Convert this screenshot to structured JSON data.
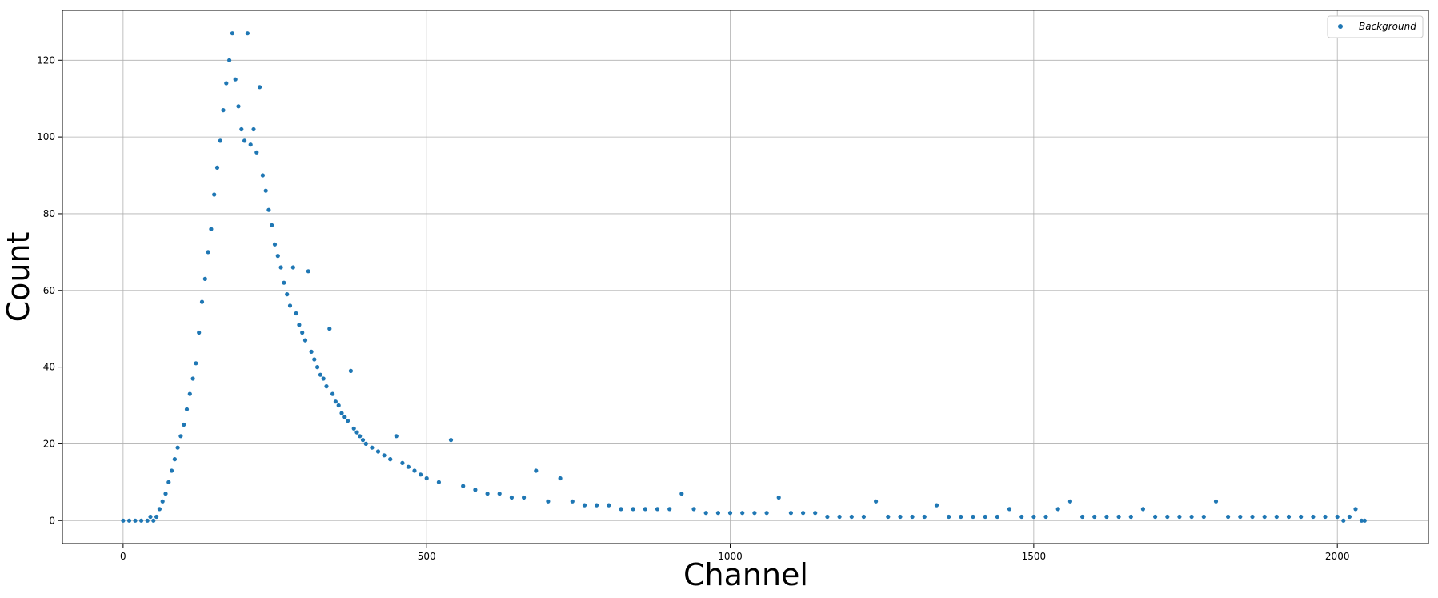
{
  "chart_data": {
    "type": "scatter",
    "title": "",
    "xlabel": "Channel",
    "ylabel": "Count",
    "xlim": [
      -100,
      2150
    ],
    "ylim": [
      -6,
      133
    ],
    "xticks": [
      0,
      500,
      1000,
      1500,
      2000
    ],
    "yticks": [
      0,
      20,
      40,
      60,
      80,
      100,
      120
    ],
    "grid": true,
    "legend_position": "top-right",
    "series": [
      {
        "name": "Background",
        "color": "#1f77b4",
        "marker": "circle",
        "points": [
          [
            0,
            0
          ],
          [
            10,
            0
          ],
          [
            20,
            0
          ],
          [
            30,
            0
          ],
          [
            40,
            0
          ],
          [
            45,
            1
          ],
          [
            50,
            0
          ],
          [
            55,
            1
          ],
          [
            60,
            3
          ],
          [
            65,
            5
          ],
          [
            70,
            7
          ],
          [
            75,
            10
          ],
          [
            80,
            13
          ],
          [
            85,
            16
          ],
          [
            90,
            19
          ],
          [
            95,
            22
          ],
          [
            100,
            25
          ],
          [
            105,
            29
          ],
          [
            110,
            33
          ],
          [
            115,
            37
          ],
          [
            120,
            41
          ],
          [
            125,
            49
          ],
          [
            130,
            57
          ],
          [
            135,
            63
          ],
          [
            140,
            70
          ],
          [
            145,
            76
          ],
          [
            150,
            85
          ],
          [
            155,
            92
          ],
          [
            160,
            99
          ],
          [
            165,
            107
          ],
          [
            170,
            114
          ],
          [
            175,
            120
          ],
          [
            180,
            127
          ],
          [
            185,
            115
          ],
          [
            190,
            108
          ],
          [
            195,
            102
          ],
          [
            200,
            99
          ],
          [
            205,
            127
          ],
          [
            210,
            98
          ],
          [
            215,
            102
          ],
          [
            220,
            96
          ],
          [
            225,
            113
          ],
          [
            230,
            90
          ],
          [
            235,
            86
          ],
          [
            240,
            81
          ],
          [
            245,
            77
          ],
          [
            250,
            72
          ],
          [
            255,
            69
          ],
          [
            260,
            66
          ],
          [
            265,
            62
          ],
          [
            270,
            59
          ],
          [
            275,
            56
          ],
          [
            280,
            66
          ],
          [
            285,
            54
          ],
          [
            290,
            51
          ],
          [
            295,
            49
          ],
          [
            300,
            47
          ],
          [
            305,
            65
          ],
          [
            310,
            44
          ],
          [
            315,
            42
          ],
          [
            320,
            40
          ],
          [
            325,
            38
          ],
          [
            330,
            37
          ],
          [
            335,
            35
          ],
          [
            340,
            50
          ],
          [
            345,
            33
          ],
          [
            350,
            31
          ],
          [
            355,
            30
          ],
          [
            360,
            28
          ],
          [
            365,
            27
          ],
          [
            370,
            26
          ],
          [
            375,
            39
          ],
          [
            380,
            24
          ],
          [
            385,
            23
          ],
          [
            390,
            22
          ],
          [
            395,
            21
          ],
          [
            400,
            20
          ],
          [
            410,
            19
          ],
          [
            420,
            18
          ],
          [
            430,
            17
          ],
          [
            440,
            16
          ],
          [
            450,
            22
          ],
          [
            460,
            15
          ],
          [
            470,
            14
          ],
          [
            480,
            13
          ],
          [
            490,
            12
          ],
          [
            500,
            11
          ],
          [
            520,
            10
          ],
          [
            540,
            21
          ],
          [
            560,
            9
          ],
          [
            580,
            8
          ],
          [
            600,
            7
          ],
          [
            620,
            7
          ],
          [
            640,
            6
          ],
          [
            660,
            6
          ],
          [
            680,
            13
          ],
          [
            700,
            5
          ],
          [
            720,
            11
          ],
          [
            740,
            5
          ],
          [
            760,
            4
          ],
          [
            780,
            4
          ],
          [
            800,
            4
          ],
          [
            820,
            3
          ],
          [
            840,
            3
          ],
          [
            860,
            3
          ],
          [
            880,
            3
          ],
          [
            900,
            3
          ],
          [
            920,
            7
          ],
          [
            940,
            3
          ],
          [
            960,
            2
          ],
          [
            980,
            2
          ],
          [
            1000,
            2
          ],
          [
            1020,
            2
          ],
          [
            1040,
            2
          ],
          [
            1060,
            2
          ],
          [
            1080,
            6
          ],
          [
            1100,
            2
          ],
          [
            1120,
            2
          ],
          [
            1140,
            2
          ],
          [
            1160,
            1
          ],
          [
            1180,
            1
          ],
          [
            1200,
            1
          ],
          [
            1220,
            1
          ],
          [
            1240,
            5
          ],
          [
            1260,
            1
          ],
          [
            1280,
            1
          ],
          [
            1300,
            1
          ],
          [
            1320,
            1
          ],
          [
            1340,
            4
          ],
          [
            1360,
            1
          ],
          [
            1380,
            1
          ],
          [
            1400,
            1
          ],
          [
            1420,
            1
          ],
          [
            1440,
            1
          ],
          [
            1460,
            3
          ],
          [
            1480,
            1
          ],
          [
            1500,
            1
          ],
          [
            1520,
            1
          ],
          [
            1540,
            3
          ],
          [
            1560,
            5
          ],
          [
            1580,
            1
          ],
          [
            1600,
            1
          ],
          [
            1620,
            1
          ],
          [
            1640,
            1
          ],
          [
            1660,
            1
          ],
          [
            1680,
            3
          ],
          [
            1700,
            1
          ],
          [
            1720,
            1
          ],
          [
            1740,
            1
          ],
          [
            1760,
            1
          ],
          [
            1780,
            1
          ],
          [
            1800,
            5
          ],
          [
            1820,
            1
          ],
          [
            1840,
            1
          ],
          [
            1860,
            1
          ],
          [
            1880,
            1
          ],
          [
            1900,
            1
          ],
          [
            1920,
            1
          ],
          [
            1940,
            1
          ],
          [
            1960,
            1
          ],
          [
            1980,
            1
          ],
          [
            2000,
            1
          ],
          [
            2010,
            0
          ],
          [
            2020,
            1
          ],
          [
            2030,
            3
          ],
          [
            2040,
            0
          ],
          [
            2045,
            0
          ]
        ]
      }
    ]
  }
}
